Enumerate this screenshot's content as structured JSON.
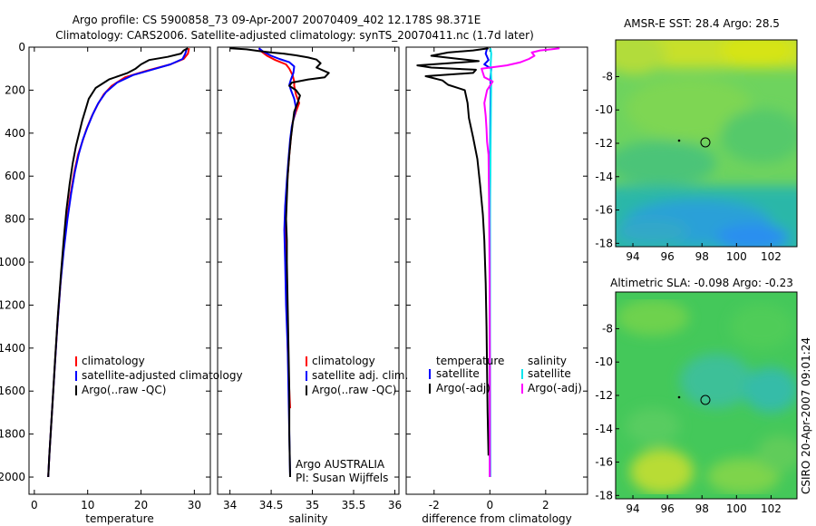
{
  "title_line1": "Argo profile: CS 5900858_73 09-Apr-2007 20070409_402 12.178S 98.371E",
  "title_line2": "Climatology: CARS2006. Satellite-adjusted climatology: synTS_20070411.nc (1.7d later)",
  "side_text": "CSIRO 20-Apr-2007 09:01:24",
  "colors": {
    "climatology": "#ff0000",
    "satellite": "#0000ff",
    "argo": "#000000",
    "sal_satellite": "#00e5ee",
    "sal_argo": "#ff00ff"
  },
  "chart_data": [
    {
      "type": "line",
      "name": "temperature-profile",
      "xlabel": "temperature",
      "ylabel": "",
      "xlim": [
        -1,
        33
      ],
      "ylim": [
        2080,
        0
      ],
      "x_ticks": [
        0,
        10,
        20,
        30
      ],
      "y_ticks": [
        0,
        200,
        400,
        600,
        800,
        1000,
        1200,
        1400,
        1600,
        1800,
        2000
      ],
      "legend": [
        "climatology",
        "satellite-adjusted climatology",
        "Argo(..raw -QC)"
      ],
      "series": [
        {
          "name": "climatology",
          "color": "#ff0000",
          "points": [
            [
              29,
              5
            ],
            [
              28.8,
              30
            ],
            [
              28,
              55
            ],
            [
              25.5,
              80
            ],
            [
              21,
              110
            ],
            [
              17,
              140
            ],
            [
              14.5,
              180
            ],
            [
              13,
              220
            ],
            [
              11.8,
              270
            ],
            [
              10.8,
              320
            ],
            [
              9.8,
              380
            ],
            [
              9,
              440
            ],
            [
              8.2,
              500
            ],
            [
              7.5,
              580
            ],
            [
              6.8,
              680
            ],
            [
              6.1,
              800
            ],
            [
              5.4,
              950
            ],
            [
              4.9,
              1100
            ],
            [
              4.3,
              1300
            ],
            [
              3.8,
              1500
            ],
            [
              3.3,
              1700
            ],
            [
              2.8,
              1900
            ],
            [
              2.6,
              2000
            ]
          ]
        },
        {
          "name": "satellite-adjusted climatology",
          "color": "#0000ff",
          "points": [
            [
              28.6,
              5
            ],
            [
              28.3,
              30
            ],
            [
              27.8,
              55
            ],
            [
              25.5,
              80
            ],
            [
              22,
              105
            ],
            [
              18.5,
              130
            ],
            [
              15.5,
              165
            ],
            [
              13.4,
              210
            ],
            [
              12,
              260
            ],
            [
              11,
              310
            ],
            [
              10,
              370
            ],
            [
              9.1,
              430
            ],
            [
              8.3,
              500
            ],
            [
              7.6,
              580
            ],
            [
              6.9,
              680
            ],
            [
              6.2,
              800
            ],
            [
              5.5,
              950
            ],
            [
              4.9,
              1100
            ],
            [
              4.3,
              1300
            ],
            [
              3.8,
              1500
            ],
            [
              3.3,
              1700
            ],
            [
              2.8,
              1900
            ],
            [
              2.6,
              2000
            ]
          ]
        },
        {
          "name": "Argo(..raw -QC)",
          "color": "#000000",
          "points": [
            [
              28.8,
              5
            ],
            [
              28,
              15
            ],
            [
              27.5,
              30
            ],
            [
              25,
              45
            ],
            [
              21.5,
              60
            ],
            [
              20,
              80
            ],
            [
              19,
              100
            ],
            [
              17.5,
              120
            ],
            [
              14,
              150
            ],
            [
              11.5,
              190
            ],
            [
              10.2,
              240
            ],
            [
              9.6,
              290
            ],
            [
              9,
              340
            ],
            [
              8.4,
              400
            ],
            [
              7.8,
              460
            ],
            [
              7.2,
              540
            ],
            [
              6.6,
              640
            ],
            [
              6,
              760
            ],
            [
              5.5,
              900
            ],
            [
              5,
              1050
            ],
            [
              4.4,
              1250
            ],
            [
              3.9,
              1450
            ],
            [
              3.3,
              1700
            ],
            [
              2.8,
              1900
            ],
            [
              2.6,
              2000
            ]
          ]
        }
      ]
    },
    {
      "type": "line",
      "name": "salinity-profile",
      "xlabel": "salinity",
      "ylabel": "",
      "xlim": [
        33.85,
        36.05
      ],
      "ylim": [
        2080,
        0
      ],
      "x_ticks": [
        34,
        34.5,
        35,
        35.5,
        36
      ],
      "x_tick_labels": [
        "34",
        "34.5",
        "35",
        "35.5",
        "36"
      ],
      "legend": [
        "climatology",
        "satellite adj. clim.",
        "Argo(..raw -QC)"
      ],
      "annotation": [
        "Argo AUSTRALIA",
        "PI: Susan Wijffels"
      ],
      "series": [
        {
          "name": "climatology",
          "color": "#ff0000",
          "points": [
            [
              34.35,
              5
            ],
            [
              34.38,
              20
            ],
            [
              34.45,
              40
            ],
            [
              34.55,
              60
            ],
            [
              34.68,
              80
            ],
            [
              34.72,
              100
            ],
            [
              34.76,
              130
            ],
            [
              34.78,
              160
            ],
            [
              34.78,
              180
            ],
            [
              34.8,
              220
            ],
            [
              34.84,
              260
            ],
            [
              34.8,
              300
            ],
            [
              34.76,
              350
            ],
            [
              34.74,
              420
            ],
            [
              34.72,
              500
            ],
            [
              34.7,
              600
            ],
            [
              34.68,
              700
            ],
            [
              34.67,
              800
            ],
            [
              34.67,
              900
            ],
            [
              34.68,
              1000
            ],
            [
              34.69,
              1200
            ],
            [
              34.7,
              1400
            ],
            [
              34.72,
              1600
            ],
            [
              34.73,
              1680
            ]
          ]
        },
        {
          "name": "satellite adj. clim.",
          "color": "#0000ff",
          "points": [
            [
              34.35,
              5
            ],
            [
              34.4,
              20
            ],
            [
              34.5,
              40
            ],
            [
              34.6,
              55
            ],
            [
              34.72,
              70
            ],
            [
              34.78,
              90
            ],
            [
              34.77,
              120
            ],
            [
              34.74,
              150
            ],
            [
              34.72,
              175
            ],
            [
              34.74,
              200
            ],
            [
              34.78,
              240
            ],
            [
              34.8,
              280
            ],
            [
              34.78,
              320
            ],
            [
              34.75,
              370
            ],
            [
              34.73,
              430
            ],
            [
              34.71,
              520
            ],
            [
              34.69,
              620
            ],
            [
              34.67,
              740
            ],
            [
              34.66,
              850
            ],
            [
              34.67,
              1000
            ],
            [
              34.68,
              1200
            ],
            [
              34.7,
              1400
            ],
            [
              34.71,
              1600
            ],
            [
              34.72,
              1800
            ],
            [
              34.73,
              2000
            ]
          ]
        },
        {
          "name": "Argo(..raw -QC)",
          "color": "#000000",
          "points": [
            [
              34.0,
              5
            ],
            [
              34.2,
              10
            ],
            [
              34.35,
              18
            ],
            [
              34.5,
              25
            ],
            [
              34.65,
              30
            ],
            [
              34.8,
              38
            ],
            [
              34.95,
              48
            ],
            [
              35.05,
              58
            ],
            [
              35.1,
              75
            ],
            [
              35.05,
              95
            ],
            [
              35.2,
              120
            ],
            [
              35.15,
              140
            ],
            [
              34.95,
              150
            ],
            [
              34.75,
              165
            ],
            [
              34.72,
              180
            ],
            [
              34.8,
              200
            ],
            [
              34.85,
              225
            ],
            [
              34.82,
              260
            ],
            [
              34.78,
              300
            ],
            [
              34.76,
              360
            ],
            [
              34.74,
              420
            ],
            [
              34.72,
              500
            ],
            [
              34.7,
              600
            ],
            [
              34.69,
              700
            ],
            [
              34.68,
              800
            ],
            [
              34.69,
              900
            ],
            [
              34.69,
              1000
            ],
            [
              34.7,
              1200
            ],
            [
              34.71,
              1400
            ],
            [
              34.72,
              1600
            ],
            [
              34.72,
              1800
            ],
            [
              34.73,
              2000
            ]
          ]
        }
      ]
    },
    {
      "type": "line",
      "name": "difference-profile",
      "xlabel": "difference from climatology",
      "ylabel": "",
      "xlim": [
        -3,
        3.5
      ],
      "ylim": [
        2080,
        0
      ],
      "x_ticks": [
        -2,
        0,
        2
      ],
      "legend_left_header": "temperature",
      "legend_right_header": "salinity",
      "legend_left": [
        "satellite",
        "Argo(-adj)"
      ],
      "legend_right": [
        "satellite",
        "Argo(-adj)"
      ],
      "series": [
        {
          "name": "temperature satellite",
          "color": "#0000ff",
          "points": [
            [
              -0.1,
              5
            ],
            [
              -0.15,
              30
            ],
            [
              -0.05,
              60
            ],
            [
              -0.2,
              80
            ],
            [
              0.05,
              100
            ],
            [
              0.02,
              150
            ],
            [
              0.03,
              200
            ],
            [
              0.02,
              300
            ],
            [
              0.01,
              500
            ],
            [
              0,
              1000
            ],
            [
              0,
              2000
            ]
          ]
        },
        {
          "name": "temperature Argo(-adj)",
          "color": "#000000",
          "points": [
            [
              -0.05,
              5
            ],
            [
              -0.6,
              15
            ],
            [
              -1.5,
              25
            ],
            [
              -2.1,
              40
            ],
            [
              -1.1,
              55
            ],
            [
              -0.4,
              65
            ],
            [
              -1.5,
              75
            ],
            [
              -2.6,
              85
            ],
            [
              -2.1,
              95
            ],
            [
              -0.5,
              105
            ],
            [
              -0.6,
              120
            ],
            [
              -2.3,
              135
            ],
            [
              -1.7,
              155
            ],
            [
              -1.5,
              175
            ],
            [
              -0.9,
              200
            ],
            [
              -0.8,
              260
            ],
            [
              -0.75,
              330
            ],
            [
              -0.6,
              420
            ],
            [
              -0.45,
              520
            ],
            [
              -0.35,
              640
            ],
            [
              -0.25,
              780
            ],
            [
              -0.2,
              900
            ],
            [
              -0.15,
              1100
            ],
            [
              -0.12,
              1300
            ],
            [
              -0.1,
              1500
            ],
            [
              -0.08,
              1700
            ],
            [
              -0.05,
              1900
            ]
          ]
        },
        {
          "name": "salinity satellite",
          "color": "#00e5ee",
          "points": [
            [
              0.02,
              5
            ],
            [
              0.05,
              30
            ],
            [
              0.03,
              80
            ],
            [
              0.05,
              150
            ],
            [
              0.04,
              250
            ],
            [
              0.03,
              400
            ],
            [
              0.01,
              700
            ],
            [
              0,
              1000
            ],
            [
              0.01,
              1500
            ],
            [
              0.02,
              2000
            ]
          ]
        },
        {
          "name": "salinity Argo(-adj)",
          "color": "#ff00ff",
          "points": [
            [
              2.5,
              5
            ],
            [
              2.2,
              10
            ],
            [
              1.8,
              15
            ],
            [
              1.5,
              25
            ],
            [
              1.6,
              40
            ],
            [
              1.4,
              55
            ],
            [
              1.1,
              70
            ],
            [
              0.6,
              85
            ],
            [
              -0.3,
              100
            ],
            [
              -0.2,
              140
            ],
            [
              0.1,
              160
            ],
            [
              -0.1,
              200
            ],
            [
              -0.2,
              260
            ],
            [
              -0.15,
              320
            ],
            [
              -0.12,
              380
            ],
            [
              -0.1,
              440
            ],
            [
              -0.05,
              500
            ],
            [
              -0.03,
              700
            ],
            [
              -0.02,
              900
            ],
            [
              -0.01,
              1100
            ],
            [
              0,
              1500
            ],
            [
              0,
              2000
            ]
          ]
        }
      ]
    },
    {
      "type": "heatmap",
      "name": "sst-map",
      "title": "AMSR-E SST: 28.4 Argo: 28.5",
      "xlim": [
        93,
        103.5
      ],
      "ylim": [
        -18.2,
        -5.8
      ],
      "x_ticks": [
        94,
        96,
        98,
        100,
        102
      ],
      "y_ticks": [
        -8,
        -10,
        -12,
        -14,
        -16,
        -18
      ],
      "profile_location": [
        98.37,
        -12.18
      ]
    },
    {
      "type": "heatmap",
      "name": "sla-map",
      "title": "Altimetric SLA: -0.098 Argo: -0.23",
      "xlim": [
        93,
        103.5
      ],
      "ylim": [
        -18.2,
        -5.8
      ],
      "x_ticks": [
        94,
        96,
        98,
        100,
        102
      ],
      "y_ticks": [
        -8,
        -10,
        -12,
        -14,
        -16,
        -18
      ],
      "profile_location": [
        98.37,
        -12.18
      ]
    }
  ]
}
